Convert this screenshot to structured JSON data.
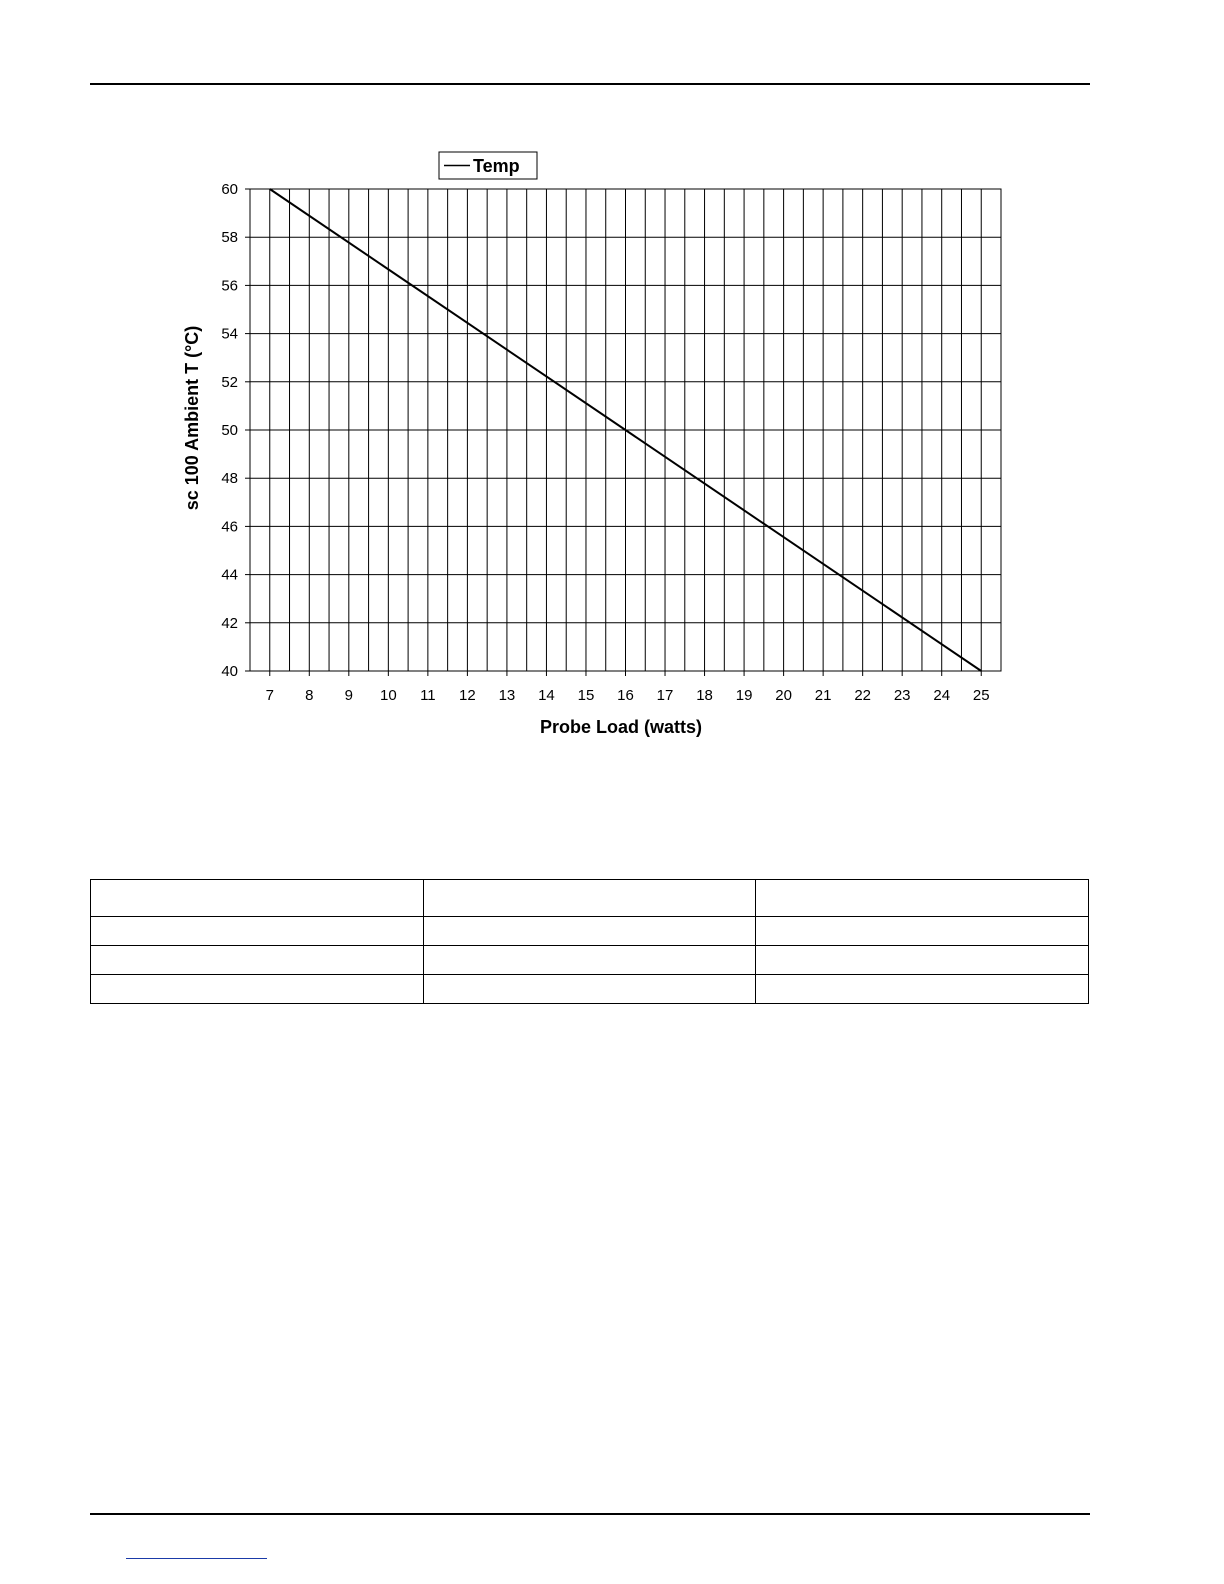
{
  "chart_data": {
    "type": "line",
    "title": "",
    "xlabel": "Probe Load (watts)",
    "ylabel": "sc 100 Ambient T (°C)",
    "xlim": [
      6.5,
      25.5
    ],
    "ylim": [
      40,
      60
    ],
    "x_ticks": [
      "7",
      "8",
      "9",
      "10",
      "11",
      "12",
      "13",
      "14",
      "15",
      "16",
      "17",
      "18",
      "19",
      "20",
      "21",
      "22",
      "23",
      "24",
      "25"
    ],
    "y_ticks": [
      "40",
      "42",
      "44",
      "46",
      "48",
      "50",
      "52",
      "54",
      "56",
      "58",
      "60"
    ],
    "legend": {
      "position": "top-center",
      "entries": [
        "Temp"
      ]
    },
    "grid": true,
    "series": [
      {
        "name": "Temp",
        "color": "#000000",
        "x": [
          7,
          25
        ],
        "y": [
          60,
          40
        ]
      }
    ]
  },
  "table": {
    "columns": 3,
    "rows": [
      [
        "",
        "",
        ""
      ],
      [
        "",
        "",
        ""
      ],
      [
        "",
        "",
        ""
      ],
      [
        "",
        "",
        ""
      ]
    ]
  }
}
